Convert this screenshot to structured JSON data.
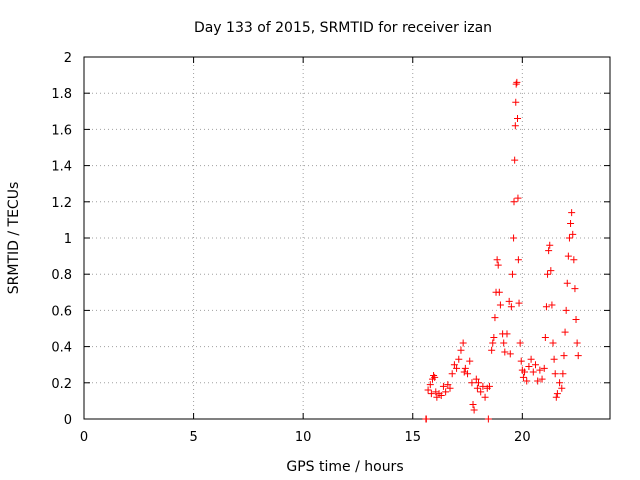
{
  "chart_data": {
    "type": "scatter",
    "title": "Day 133 of 2015, SRMTID for receiver izan",
    "xlabel": "GPS time / hours",
    "ylabel": "SRMTID / TECUs",
    "xlim": [
      0,
      24
    ],
    "ylim": [
      0,
      2
    ],
    "xticks": [
      0,
      5,
      10,
      15,
      20
    ],
    "xtick_labels": [
      "0",
      "5",
      "10",
      "15",
      "20"
    ],
    "yticks": [
      0,
      0.2,
      0.4,
      0.6,
      0.8,
      1,
      1.2,
      1.4,
      1.6,
      1.8,
      2
    ],
    "ytick_labels": [
      "0",
      "0.2",
      "0.4",
      "0.6",
      "0.8",
      "1",
      "1.2",
      "1.4",
      "1.6",
      "1.8",
      "2"
    ],
    "grid": true,
    "legend": "none",
    "marker": "plus",
    "color": "#ff0000",
    "series": [
      {
        "name": "SRMTID",
        "points": [
          [
            15.6,
            0.0
          ],
          [
            15.62,
            0.0
          ],
          [
            15.7,
            0.16
          ],
          [
            15.8,
            0.19
          ],
          [
            15.85,
            0.14
          ],
          [
            15.9,
            0.22
          ],
          [
            15.95,
            0.24
          ],
          [
            16.0,
            0.23
          ],
          [
            16.05,
            0.15
          ],
          [
            16.1,
            0.12
          ],
          [
            16.2,
            0.14
          ],
          [
            16.3,
            0.13
          ],
          [
            16.4,
            0.18
          ],
          [
            16.5,
            0.15
          ],
          [
            16.6,
            0.19
          ],
          [
            16.7,
            0.17
          ],
          [
            16.8,
            0.25
          ],
          [
            16.9,
            0.3
          ],
          [
            17.0,
            0.28
          ],
          [
            17.1,
            0.33
          ],
          [
            17.2,
            0.38
          ],
          [
            17.3,
            0.42
          ],
          [
            17.35,
            0.26
          ],
          [
            17.4,
            0.28
          ],
          [
            17.5,
            0.25
          ],
          [
            17.6,
            0.32
          ],
          [
            17.7,
            0.2
          ],
          [
            17.75,
            0.08
          ],
          [
            17.8,
            0.05
          ],
          [
            17.9,
            0.22
          ],
          [
            17.95,
            0.17
          ],
          [
            18.0,
            0.2
          ],
          [
            18.1,
            0.15
          ],
          [
            18.2,
            0.18
          ],
          [
            18.3,
            0.12
          ],
          [
            18.4,
            0.17
          ],
          [
            18.45,
            0.0
          ],
          [
            18.5,
            0.18
          ],
          [
            18.6,
            0.38
          ],
          [
            18.65,
            0.42
          ],
          [
            18.7,
            0.45
          ],
          [
            18.75,
            0.56
          ],
          [
            18.8,
            0.7
          ],
          [
            18.85,
            0.88
          ],
          [
            18.9,
            0.85
          ],
          [
            18.95,
            0.7
          ],
          [
            19.0,
            0.63
          ],
          [
            19.1,
            0.47
          ],
          [
            19.15,
            0.42
          ],
          [
            19.2,
            0.37
          ],
          [
            19.3,
            0.47
          ],
          [
            19.4,
            0.65
          ],
          [
            19.45,
            0.36
          ],
          [
            19.5,
            0.62
          ],
          [
            19.55,
            0.8
          ],
          [
            19.6,
            1.0
          ],
          [
            19.62,
            1.2
          ],
          [
            19.65,
            1.43
          ],
          [
            19.68,
            1.62
          ],
          [
            19.7,
            1.75
          ],
          [
            19.72,
            1.85
          ],
          [
            19.75,
            1.86
          ],
          [
            19.78,
            1.66
          ],
          [
            19.8,
            1.22
          ],
          [
            19.82,
            0.88
          ],
          [
            19.85,
            0.64
          ],
          [
            19.9,
            0.42
          ],
          [
            19.95,
            0.32
          ],
          [
            20.0,
            0.27
          ],
          [
            20.05,
            0.23
          ],
          [
            20.1,
            0.26
          ],
          [
            20.2,
            0.21
          ],
          [
            20.3,
            0.29
          ],
          [
            20.4,
            0.33
          ],
          [
            20.5,
            0.26
          ],
          [
            20.6,
            0.3
          ],
          [
            20.7,
            0.21
          ],
          [
            20.8,
            0.27
          ],
          [
            20.9,
            0.22
          ],
          [
            21.0,
            0.28
          ],
          [
            21.05,
            0.45
          ],
          [
            21.1,
            0.62
          ],
          [
            21.15,
            0.8
          ],
          [
            21.2,
            0.93
          ],
          [
            21.25,
            0.96
          ],
          [
            21.3,
            0.82
          ],
          [
            21.35,
            0.63
          ],
          [
            21.4,
            0.42
          ],
          [
            21.45,
            0.33
          ],
          [
            21.5,
            0.25
          ],
          [
            21.55,
            0.12
          ],
          [
            21.6,
            0.14
          ],
          [
            21.7,
            0.2
          ],
          [
            21.8,
            0.17
          ],
          [
            21.85,
            0.25
          ],
          [
            21.9,
            0.35
          ],
          [
            21.95,
            0.48
          ],
          [
            22.0,
            0.6
          ],
          [
            22.05,
            0.75
          ],
          [
            22.1,
            0.9
          ],
          [
            22.15,
            1.0
          ],
          [
            22.2,
            1.08
          ],
          [
            22.25,
            1.14
          ],
          [
            22.3,
            1.02
          ],
          [
            22.35,
            0.88
          ],
          [
            22.4,
            0.72
          ],
          [
            22.45,
            0.55
          ],
          [
            22.5,
            0.42
          ],
          [
            22.55,
            0.35
          ]
        ]
      }
    ]
  }
}
